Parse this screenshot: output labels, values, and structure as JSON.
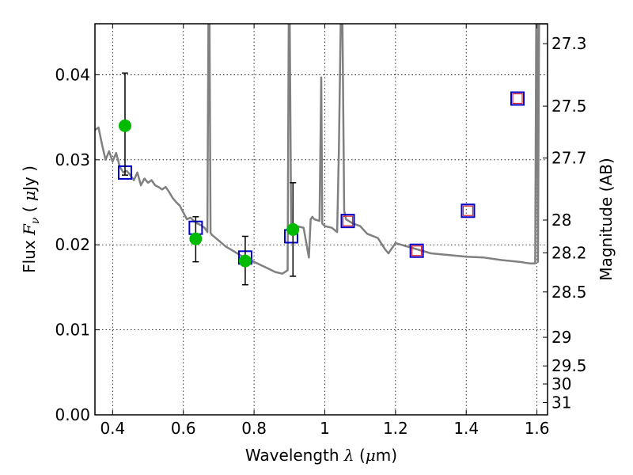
{
  "chart_data": {
    "type": "scatter",
    "title": "",
    "xlabel": {
      "prefix": "Wavelength  ",
      "symbol": "λ",
      "unit_open": " (",
      "unit_mu": "μ",
      "unit_rest": "m)"
    },
    "ylabel": {
      "prefix": "Flux  ",
      "symbol": "F",
      "subscript": "ν",
      "unit_open": "  (  ",
      "unit_mu": "μ",
      "unit_rest": "Jy  )"
    },
    "y2label": "Magnitude (AB)",
    "xlim": [
      0.35,
      1.63
    ],
    "ylim": [
      0.0,
      0.046
    ],
    "grid": true,
    "x_ticks": [
      {
        "value": 0.4,
        "label": "0.4"
      },
      {
        "value": 0.6,
        "label": "0.6"
      },
      {
        "value": 0.8,
        "label": "0.8"
      },
      {
        "value": 1.0,
        "label": "1"
      },
      {
        "value": 1.2,
        "label": "1.2"
      },
      {
        "value": 1.4,
        "label": "1.4"
      },
      {
        "value": 1.6,
        "label": "1.6"
      }
    ],
    "y_ticks": [
      {
        "value": 0.0,
        "label": "0.00"
      },
      {
        "value": 0.01,
        "label": "0.01"
      },
      {
        "value": 0.02,
        "label": "0.02"
      },
      {
        "value": 0.03,
        "label": "0.03"
      },
      {
        "value": 0.04,
        "label": "0.04"
      }
    ],
    "y2_ticks": [
      {
        "mag": 27.3,
        "label": "27.3"
      },
      {
        "mag": 27.5,
        "label": "27.5"
      },
      {
        "mag": 27.7,
        "label": "27.7"
      },
      {
        "mag": 28,
        "label": "28"
      },
      {
        "mag": 28.2,
        "label": "28.2"
      },
      {
        "mag": 28.5,
        "label": "28.5"
      },
      {
        "mag": 29,
        "label": "29"
      },
      {
        "mag": 29.5,
        "label": "29.5"
      },
      {
        "mag": 30,
        "label": "30"
      },
      {
        "mag": 31,
        "label": "31"
      }
    ],
    "series": [
      {
        "kind": "line",
        "color": "#808080",
        "x": [
          0.35,
          0.36,
          0.37,
          0.38,
          0.39,
          0.4,
          0.41,
          0.42,
          0.43,
          0.44,
          0.45,
          0.46,
          0.47,
          0.48,
          0.49,
          0.5,
          0.51,
          0.52,
          0.53,
          0.54,
          0.55,
          0.56,
          0.57,
          0.58,
          0.59,
          0.6,
          0.61,
          0.62,
          0.63,
          0.64,
          0.65,
          0.66,
          0.668,
          0.671,
          0.674,
          0.677,
          0.68,
          0.7,
          0.72,
          0.74,
          0.76,
          0.78,
          0.8,
          0.82,
          0.84,
          0.86,
          0.88,
          0.895,
          0.898,
          0.901,
          0.905,
          0.92,
          0.94,
          0.955,
          0.96,
          0.965,
          0.97,
          0.985,
          0.99,
          0.993,
          1.0,
          1.02,
          1.035,
          1.04,
          1.045,
          1.05,
          1.055,
          1.06,
          1.08,
          1.1,
          1.12,
          1.15,
          1.17,
          1.18,
          1.2,
          1.25,
          1.3,
          1.35,
          1.4,
          1.45,
          1.5,
          1.55,
          1.58,
          1.595,
          1.598,
          1.6,
          1.603,
          1.606,
          1.61,
          1.63
        ],
        "y": [
          0.0335,
          0.0338,
          0.0318,
          0.03,
          0.031,
          0.0298,
          0.0308,
          0.0292,
          0.0285,
          0.0287,
          0.0282,
          0.0276,
          0.0285,
          0.027,
          0.0278,
          0.0273,
          0.0276,
          0.027,
          0.0268,
          0.0265,
          0.0268,
          0.0262,
          0.0255,
          0.025,
          0.0246,
          0.0238,
          0.023,
          0.0232,
          0.0228,
          0.0225,
          0.0223,
          0.022,
          0.0215,
          0.046,
          0.046,
          0.0214,
          0.0212,
          0.0205,
          0.0198,
          0.0193,
          0.0188,
          0.0183,
          0.018,
          0.0176,
          0.0172,
          0.0168,
          0.0166,
          0.017,
          0.046,
          0.046,
          0.0218,
          0.0222,
          0.022,
          0.0185,
          0.023,
          0.0233,
          0.023,
          0.0228,
          0.0397,
          0.0225,
          0.0222,
          0.022,
          0.0215,
          0.0312,
          0.046,
          0.046,
          0.024,
          0.023,
          0.0225,
          0.0222,
          0.0213,
          0.0208,
          0.0195,
          0.019,
          0.0202,
          0.0196,
          0.019,
          0.0188,
          0.0186,
          0.0185,
          0.0182,
          0.018,
          0.0178,
          0.0178,
          0.046,
          0.046,
          0.018,
          0.046,
          0.046,
          0.046
        ]
      },
      {
        "kind": "model_photometry",
        "marker": "square",
        "color": "#0000cc",
        "x": [
          0.435,
          0.635,
          0.775,
          0.905,
          1.065,
          1.26,
          1.405,
          1.545
        ],
        "y": [
          0.0285,
          0.022,
          0.0185,
          0.021,
          0.0228,
          0.0193,
          0.024,
          0.0372
        ]
      },
      {
        "kind": "inner_squares",
        "marker": "square",
        "color": "#dd2222",
        "x": [
          1.065,
          1.26,
          1.405,
          1.545
        ],
        "y": [
          0.0228,
          0.0193,
          0.024,
          0.0372
        ]
      },
      {
        "kind": "observed",
        "marker": "circle",
        "color": "#00bb00",
        "x": [
          0.435,
          0.635,
          0.775,
          0.91
        ],
        "y": [
          0.034,
          0.0207,
          0.0181,
          0.0218
        ],
        "yerr_low": [
          0.0282,
          0.018,
          0.0153,
          0.0163
        ],
        "yerr_high": [
          0.0402,
          0.0233,
          0.021,
          0.0273
        ]
      }
    ]
  }
}
